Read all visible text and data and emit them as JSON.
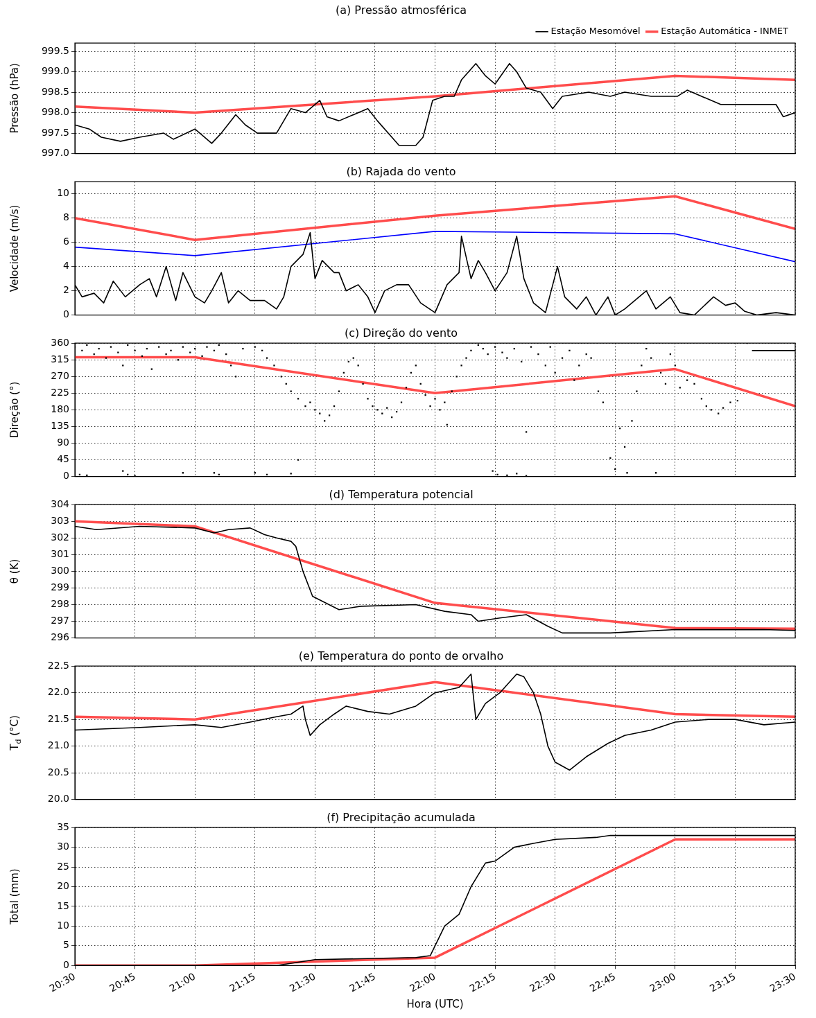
{
  "chart_data": [
    {
      "type": "line",
      "title": "(a) Pressão atmosférica",
      "ylabel": "Pressão (hPa)",
      "x": [
        20.5,
        21,
        22,
        23,
        23.5
      ],
      "xlim": [
        20.5,
        23.5
      ],
      "xticks": [
        20.5,
        20.75,
        21,
        21.25,
        21.5,
        21.75,
        22,
        22.25,
        22.5,
        22.75,
        23,
        23.25,
        23.5
      ],
      "ylim": [
        997,
        999.7
      ],
      "yticks": [
        {
          "value": 997,
          "label": "997.0"
        },
        {
          "value": 997.5,
          "label": "997.5"
        },
        {
          "value": 998,
          "label": "998.0"
        },
        {
          "value": 998.5,
          "label": "998.5"
        },
        {
          "value": 999,
          "label": "999.0"
        },
        {
          "value": 999.5,
          "label": "999.5"
        }
      ],
      "grid": true,
      "legend": "top right",
      "tick_labels": "y",
      "series": [
        {
          "name": "Estação Mesomóvel",
          "color": "#000000",
          "x": [
            20.5,
            20.56,
            20.61,
            20.69,
            20.77,
            20.87,
            20.91,
            21.0,
            21.07,
            21.11,
            21.17,
            21.21,
            21.26,
            21.34,
            21.4,
            21.46,
            21.52,
            21.55,
            21.6,
            21.72,
            21.76,
            21.85,
            21.92,
            21.95,
            21.99,
            22.04,
            22.08,
            22.11,
            22.17,
            22.21,
            22.25,
            22.31,
            22.34,
            22.38,
            22.44,
            22.49,
            22.53,
            22.64,
            22.73,
            22.79,
            22.9,
            23.01,
            23.05,
            23.11,
            23.19,
            23.31,
            23.42,
            23.45,
            23.5
          ],
          "values": [
            997.7,
            997.6,
            997.4,
            997.3,
            997.4,
            997.5,
            997.35,
            997.6,
            997.25,
            997.5,
            997.95,
            997.7,
            997.5,
            997.5,
            998.1,
            998.0,
            998.3,
            997.9,
            997.8,
            998.1,
            997.8,
            997.2,
            997.2,
            997.4,
            998.3,
            998.4,
            998.4,
            998.8,
            999.2,
            998.9,
            998.7,
            999.2,
            999.0,
            998.6,
            998.5,
            998.1,
            998.4,
            998.5,
            998.4,
            998.5,
            998.4,
            998.4,
            998.55,
            998.4,
            998.2,
            998.2,
            998.2,
            997.9,
            998.0
          ]
        },
        {
          "name": "Estação Automática - INMET",
          "color": "#ff4c4c",
          "values": [
            998.15,
            998.0,
            998.4,
            998.9,
            998.8
          ]
        }
      ]
    },
    {
      "type": "line",
      "title": "(b) Rajada do vento",
      "ylabel": "Velocidade (m/s)",
      "x": [
        20.5,
        21,
        22,
        23,
        23.5
      ],
      "xlim": [
        20.5,
        23.5
      ],
      "xticks": [
        20.5,
        20.75,
        21,
        21.25,
        21.5,
        21.75,
        22,
        22.25,
        22.5,
        22.75,
        23,
        23.25,
        23.5
      ],
      "ylim": [
        0,
        11
      ],
      "yticks": [
        0,
        2,
        4,
        6,
        8,
        10
      ],
      "grid": true,
      "tick_labels": "y",
      "series": [
        {
          "color": "#000000",
          "x": [
            20.5,
            20.53,
            20.58,
            20.62,
            20.66,
            20.71,
            20.77,
            20.81,
            20.84,
            20.88,
            20.92,
            20.95,
            21.0,
            21.04,
            21.07,
            21.11,
            21.14,
            21.18,
            21.23,
            21.29,
            21.34,
            21.37,
            21.4,
            21.45,
            21.48,
            21.5,
            21.53,
            21.58,
            21.6,
            21.63,
            21.68,
            21.72,
            21.75,
            21.79,
            21.84,
            21.89,
            21.94,
            22.0,
            22.05,
            22.1,
            22.11,
            22.15,
            22.18,
            22.21,
            22.25,
            22.3,
            22.34,
            22.37,
            22.41,
            22.46,
            22.51,
            22.54,
            22.59,
            22.63,
            22.67,
            22.72,
            22.75,
            22.79,
            22.88,
            22.92,
            22.98,
            23.02,
            23.08,
            23.16,
            23.21,
            23.25,
            23.29,
            23.34,
            23.42,
            23.5
          ],
          "values": [
            2.5,
            1.5,
            1.8,
            1.0,
            2.8,
            1.5,
            2.5,
            3.0,
            1.5,
            4.0,
            1.2,
            3.5,
            1.5,
            1.0,
            2.0,
            3.5,
            1.0,
            2.0,
            1.2,
            1.2,
            0.5,
            1.5,
            4.0,
            5.0,
            6.8,
            3.0,
            4.5,
            3.5,
            3.5,
            2.0,
            2.5,
            1.5,
            0.2,
            2.0,
            2.5,
            2.5,
            1.0,
            0.2,
            2.5,
            3.5,
            6.5,
            3.0,
            4.5,
            3.5,
            2.0,
            3.5,
            6.5,
            3.0,
            1.0,
            0.2,
            4.0,
            1.5,
            0.5,
            1.5,
            0.0,
            1.5,
            0.0,
            0.5,
            2.0,
            0.5,
            1.5,
            0.2,
            0.0,
            1.5,
            0.8,
            1.0,
            0.3,
            0.0,
            0.2,
            0.0
          ]
        },
        {
          "color": "#0000ff",
          "values": [
            5.6,
            4.9,
            6.9,
            6.7,
            4.4
          ]
        },
        {
          "color": "#ff4c4c",
          "values": [
            8.0,
            6.2,
            8.2,
            9.8,
            7.1
          ]
        }
      ]
    },
    {
      "type": "line",
      "title": "(c) Direção do vento",
      "ylabel": "Direção (°)",
      "x": [
        20.5,
        21,
        22,
        23,
        23.5
      ],
      "xlim": [
        20.5,
        23.5
      ],
      "xticks": [
        20.5,
        20.75,
        21,
        21.25,
        21.5,
        21.75,
        22,
        22.25,
        22.5,
        22.75,
        23,
        23.25,
        23.5
      ],
      "ylim": [
        0,
        360
      ],
      "yticks": [
        0,
        45,
        90,
        135,
        180,
        225,
        270,
        315,
        360
      ],
      "grid": true,
      "tick_labels": "y",
      "series": [
        {
          "type": "scatter",
          "marker": "square",
          "color": "#000000",
          "x": [
            20.5,
            20.53,
            20.55,
            20.58,
            20.6,
            20.63,
            20.65,
            20.68,
            20.7,
            20.72,
            20.75,
            20.78,
            20.8,
            20.82,
            20.85,
            20.88,
            20.9,
            20.93,
            20.95,
            20.98,
            21.0,
            21.03,
            21.05,
            21.08,
            21.1,
            21.13,
            21.15,
            21.17,
            21.2,
            21.25,
            21.28,
            21.3,
            20.52,
            20.55,
            20.7,
            20.72,
            20.75,
            20.95,
            21.08,
            21.1,
            21.25,
            21.3,
            21.4,
            21.43,
            21.33,
            21.36,
            21.38,
            21.4,
            21.43,
            21.46,
            21.48,
            21.5,
            21.52,
            21.54,
            21.56,
            21.58,
            21.6,
            21.62,
            21.64,
            21.66,
            21.68,
            21.7,
            21.72,
            21.74,
            21.76,
            21.78,
            21.8,
            21.82,
            21.84,
            21.86,
            21.88,
            21.9,
            21.92,
            21.94,
            21.96,
            21.98,
            22.0,
            22.02,
            22.04,
            22.05,
            22.07,
            22.09,
            22.11,
            22.13,
            22.15,
            22.18,
            22.2,
            22.22,
            22.25,
            22.28,
            22.3,
            22.33,
            22.36,
            22.38,
            22.4,
            22.43,
            22.46,
            22.48,
            22.5,
            22.53,
            22.56,
            22.58,
            22.6,
            22.63,
            22.65,
            22.68,
            22.7,
            22.73,
            22.75,
            22.77,
            22.79,
            22.8,
            22.82,
            22.84,
            22.86,
            22.88,
            22.9,
            22.92,
            22.94,
            22.96,
            22.98,
            23.0,
            23.02,
            23.05,
            23.08,
            23.11,
            23.13,
            23.15,
            23.18,
            23.2,
            23.23,
            23.26,
            23.3,
            22.24,
            22.26,
            22.3,
            22.34,
            22.38
          ],
          "values": [
            350,
            340,
            355,
            330,
            345,
            320,
            350,
            335,
            300,
            355,
            340,
            325,
            345,
            290,
            350,
            330,
            340,
            315,
            350,
            335,
            345,
            325,
            350,
            340,
            355,
            330,
            300,
            270,
            345,
            350,
            340,
            320,
            5,
            3,
            15,
            5,
            2,
            10,
            10,
            5,
            10,
            5,
            8,
            45,
            300,
            270,
            250,
            230,
            210,
            190,
            200,
            180,
            170,
            150,
            165,
            190,
            230,
            280,
            310,
            320,
            300,
            250,
            210,
            190,
            180,
            170,
            185,
            160,
            175,
            200,
            240,
            280,
            300,
            250,
            220,
            190,
            210,
            180,
            200,
            140,
            230,
            270,
            300,
            320,
            340,
            355,
            345,
            330,
            350,
            335,
            320,
            345,
            310,
            120,
            350,
            330,
            300,
            350,
            280,
            320,
            340,
            260,
            300,
            330,
            320,
            230,
            200,
            50,
            20,
            130,
            80,
            10,
            150,
            230,
            300,
            345,
            320,
            10,
            280,
            250,
            330,
            300,
            240,
            260,
            250,
            210,
            190,
            180,
            170,
            185,
            200,
            205,
            360,
            15,
            5,
            3,
            8,
            2
          ]
        },
        {
          "color": "#000000",
          "x": [
            23.32,
            23.5
          ],
          "values": [
            340,
            340
          ]
        },
        {
          "color": "#ff4c4c",
          "values": [
            322,
            322,
            225,
            290,
            190
          ]
        }
      ]
    },
    {
      "type": "line",
      "title": "(d) Temperatura potencial",
      "ylabel": "θ (K)",
      "x": [
        20.5,
        21,
        22,
        23,
        23.5
      ],
      "xlim": [
        20.5,
        23.5
      ],
      "xticks": [
        20.5,
        20.75,
        21,
        21.25,
        21.5,
        21.75,
        22,
        22.25,
        22.5,
        22.75,
        23,
        23.25,
        23.5
      ],
      "ylim": [
        296,
        304
      ],
      "yticks": [
        296,
        297,
        298,
        299,
        300,
        301,
        302,
        303,
        304
      ],
      "grid": true,
      "tick_labels": "y",
      "series": [
        {
          "color": "#000000",
          "x": [
            20.5,
            20.59,
            20.77,
            21.0,
            21.08,
            21.14,
            21.23,
            21.29,
            21.34,
            21.4,
            21.42,
            21.45,
            21.49,
            21.6,
            21.69,
            21.92,
            22.04,
            22.15,
            22.18,
            22.27,
            22.38,
            22.47,
            22.53,
            22.73,
            23.0,
            23.37,
            23.5
          ],
          "values": [
            302.7,
            302.5,
            302.7,
            302.6,
            302.3,
            302.5,
            302.6,
            302.2,
            302.0,
            301.8,
            301.5,
            300.0,
            298.5,
            297.7,
            297.9,
            298.0,
            297.6,
            297.4,
            297.0,
            297.2,
            297.4,
            296.7,
            296.3,
            296.3,
            296.5,
            296.5,
            296.45
          ]
        },
        {
          "color": "#ff4c4c",
          "values": [
            303.0,
            302.7,
            298.1,
            296.6,
            296.55
          ]
        }
      ]
    },
    {
      "type": "line",
      "title": "(e) Temperatura do ponto de orvalho",
      "ylabel": "T$_{d}$ (°C)",
      "x": [
        20.5,
        21,
        22,
        23,
        23.5
      ],
      "xlim": [
        20.5,
        23.5
      ],
      "xticks": [
        20.5,
        20.75,
        21,
        21.25,
        21.5,
        21.75,
        22,
        22.25,
        22.5,
        22.75,
        23,
        23.25,
        23.5
      ],
      "ylim": [
        20,
        22.5
      ],
      "yticks": [
        {
          "value": 20,
          "label": "20.0"
        },
        {
          "value": 20.5,
          "label": "20.5"
        },
        {
          "value": 21,
          "label": "21.0"
        },
        {
          "value": 21.5,
          "label": "21.5"
        },
        {
          "value": 22,
          "label": "22.0"
        },
        {
          "value": 22.5,
          "label": "22.5"
        }
      ],
      "grid": true,
      "tick_labels": "y",
      "series": [
        {
          "color": "#000000",
          "x": [
            20.5,
            20.77,
            21.0,
            21.11,
            21.23,
            21.34,
            21.4,
            21.45,
            21.46,
            21.48,
            21.52,
            21.58,
            21.63,
            21.72,
            21.81,
            21.92,
            22.0,
            22.1,
            22.15,
            22.17,
            22.21,
            22.27,
            22.34,
            22.37,
            22.41,
            22.44,
            22.47,
            22.5,
            22.56,
            22.63,
            22.72,
            22.79,
            22.9,
            23.0,
            23.14,
            23.25,
            23.37,
            23.5
          ],
          "values": [
            21.3,
            21.35,
            21.4,
            21.35,
            21.45,
            21.55,
            21.6,
            21.75,
            21.5,
            21.2,
            21.4,
            21.6,
            21.75,
            21.65,
            21.6,
            21.75,
            22.0,
            22.1,
            22.35,
            21.5,
            21.8,
            22.0,
            22.35,
            22.3,
            22.0,
            21.6,
            21.0,
            20.7,
            20.55,
            20.8,
            21.05,
            21.2,
            21.3,
            21.45,
            21.5,
            21.5,
            21.4,
            21.45
          ]
        },
        {
          "color": "#ff4c4c",
          "values": [
            21.55,
            21.5,
            22.2,
            21.6,
            21.55
          ]
        }
      ]
    },
    {
      "type": "line",
      "title": "(f) Precipitação acumulada",
      "ylabel": "Total (mm)",
      "xlabel": "Hora (UTC)",
      "x": [
        20.5,
        21,
        22,
        23,
        23.5
      ],
      "xlim": [
        20.5,
        23.5
      ],
      "xticks": [
        {
          "value": 20.5,
          "label": "20:30"
        },
        {
          "value": 20.75,
          "label": "20:45"
        },
        {
          "value": 21,
          "label": "21:00"
        },
        {
          "value": 21.25,
          "label": "21:15"
        },
        {
          "value": 21.5,
          "label": "21:30"
        },
        {
          "value": 21.75,
          "label": "21:45"
        },
        {
          "value": 22,
          "label": "22:00"
        },
        {
          "value": 22.25,
          "label": "22:15"
        },
        {
          "value": 22.5,
          "label": "22:30"
        },
        {
          "value": 22.75,
          "label": "22:45"
        },
        {
          "value": 23,
          "label": "23:00"
        },
        {
          "value": 23.25,
          "label": "23:15"
        },
        {
          "value": 23.5,
          "label": "23:30"
        }
      ],
      "ylim": [
        0,
        35
      ],
      "yticks": [
        0,
        5,
        10,
        15,
        20,
        25,
        30,
        35
      ],
      "grid": true,
      "series": [
        {
          "color": "#000000",
          "x": [
            20.5,
            21.34,
            21.5,
            21.75,
            21.92,
            21.98,
            22.04,
            22.1,
            22.15,
            22.21,
            22.25,
            22.33,
            22.41,
            22.5,
            22.67,
            22.73,
            23.0,
            23.5
          ],
          "values": [
            0,
            0,
            1.5,
            1.8,
            2.0,
            2.5,
            10,
            13,
            20,
            26,
            26.5,
            30,
            31,
            32,
            32.5,
            33,
            33,
            33
          ]
        },
        {
          "color": "#ff4c4c",
          "values": [
            0,
            0,
            2,
            32,
            32
          ]
        }
      ]
    }
  ]
}
